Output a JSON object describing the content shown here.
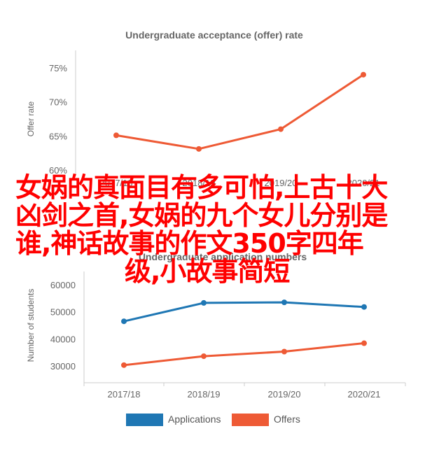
{
  "colors": {
    "applications": "#1f77b4",
    "offers": "#ee5a35",
    "overlay_text": "#ff0000",
    "axis": "#cccccc",
    "text": "#666666"
  },
  "chart_data": [
    {
      "type": "line",
      "title": "Undergraduate acceptance (offer) rate",
      "ylabel": "Offer rate",
      "xlabel": "",
      "categories": [
        "2017/18",
        "2018/19",
        "2019/20",
        "2020/21"
      ],
      "series": [
        {
          "values": [
            65.1,
            63.1,
            66.0,
            74.0
          ]
        }
      ],
      "ylim": [
        60,
        75
      ],
      "yticks": [
        "60%",
        "65%",
        "70%",
        "75%"
      ],
      "ytick_values": [
        60,
        65,
        70,
        75
      ],
      "grid": false,
      "legend": "none"
    },
    {
      "type": "line",
      "title": "Undergraduate application numbers",
      "ylabel": "Number of students",
      "xlabel": "",
      "categories": [
        "2017/18",
        "2018/19",
        "2019/20",
        "2020/21"
      ],
      "series": [
        {
          "name": "Applications",
          "values": [
            46500,
            53300,
            53500,
            51800
          ]
        },
        {
          "name": "Offers",
          "values": [
            30300,
            33600,
            35300,
            38400
          ]
        }
      ],
      "ylim": [
        30000,
        60000
      ],
      "yticks": [
        "30000",
        "40000",
        "50000",
        "60000"
      ],
      "ytick_values": [
        30000,
        40000,
        50000,
        60000
      ],
      "grid": false,
      "legend": "bottom"
    }
  ],
  "overlay": {
    "lines": [
      "女娲的真面目有多可怕,上古十大",
      "凶剑之首,女娲的九个女儿分别是",
      "谁,神话故事的作文350字四年",
      "级,小故事简短"
    ]
  }
}
